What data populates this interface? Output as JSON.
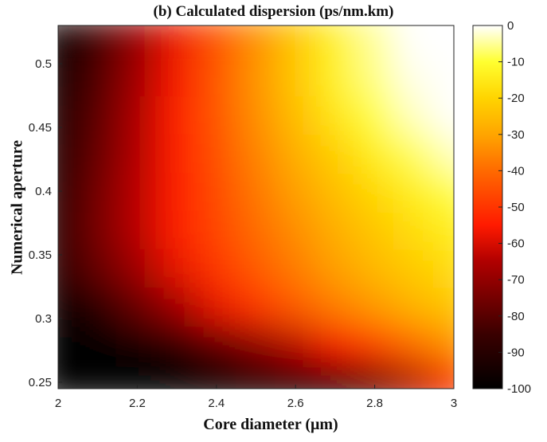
{
  "chart_data": {
    "type": "heatmap",
    "title": "(b) Calculated dispersion (ps/nm.km)",
    "xlabel": "Core diameter (μm)",
    "ylabel": "Numerical aperture",
    "xlim": [
      2.0,
      3.0
    ],
    "ylim": [
      0.245,
      0.53
    ],
    "x_ticks": [
      2,
      2.2,
      2.4,
      2.6,
      2.8,
      3
    ],
    "x_tick_labels": [
      "2",
      "2.2",
      "2.4",
      "2.6",
      "2.8",
      "3"
    ],
    "y_ticks": [
      0.25,
      0.3,
      0.35,
      0.4,
      0.45,
      0.5
    ],
    "y_tick_labels": [
      "0.25",
      "0.3",
      "0.35",
      "0.4",
      "0.45",
      "0.5"
    ],
    "colorbar": {
      "colormap": "hot",
      "range": [
        -100,
        0
      ],
      "ticks": [
        0,
        -10,
        -20,
        -30,
        -40,
        -50,
        -60,
        -70,
        -80,
        -90,
        -100
      ],
      "tick_labels": [
        "0",
        "-10",
        "-20",
        "-30",
        "-40",
        "-50",
        "-60",
        "-70",
        "-80",
        "-90",
        "-100"
      ]
    },
    "grid": false,
    "x": [
      2.0,
      2.1,
      2.2,
      2.3,
      2.4,
      2.5,
      2.6,
      2.7,
      2.8,
      2.9,
      3.0
    ],
    "y": [
      0.25,
      0.28,
      0.31,
      0.34,
      0.37,
      0.4,
      0.43,
      0.46,
      0.49,
      0.52
    ],
    "z": [
      [
        -100,
        -100,
        -100,
        -100,
        -100,
        -98,
        -95,
        -92,
        -78,
        -65,
        -52
      ],
      [
        -100,
        -100,
        -98,
        -90,
        -80,
        -72,
        -64,
        -56,
        -48,
        -40,
        -33
      ],
      [
        -98,
        -90,
        -78,
        -68,
        -58,
        -50,
        -43,
        -37,
        -32,
        -27,
        -23
      ],
      [
        -90,
        -78,
        -68,
        -58,
        -50,
        -43,
        -37,
        -31,
        -26,
        -22,
        -18
      ],
      [
        -90,
        -75,
        -64,
        -55,
        -47,
        -40,
        -34,
        -28,
        -23,
        -18,
        -14
      ],
      [
        -92,
        -76,
        -64,
        -55,
        -46,
        -38,
        -31,
        -25,
        -19,
        -14,
        -9
      ],
      [
        -93,
        -78,
        -65,
        -55,
        -45,
        -36,
        -28,
        -21,
        -14,
        -8,
        -3
      ],
      [
        -95,
        -80,
        -66,
        -55,
        -44,
        -34,
        -25,
        -16,
        -9,
        -3,
        0
      ],
      [
        -97,
        -82,
        -68,
        -56,
        -44,
        -33,
        -23,
        -13,
        -6,
        -1,
        0
      ],
      [
        -100,
        -85,
        -70,
        -57,
        -45,
        -34,
        -23,
        -13,
        -5,
        0,
        0
      ]
    ]
  }
}
